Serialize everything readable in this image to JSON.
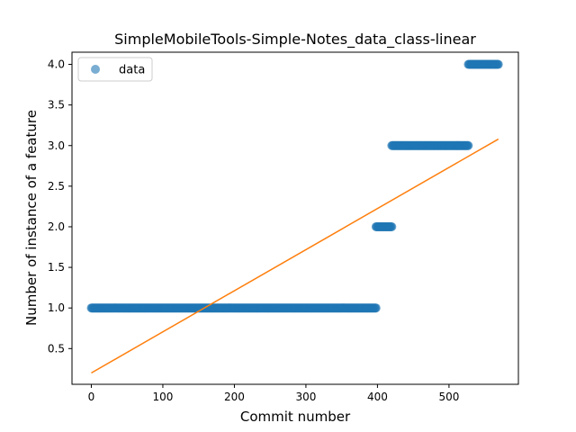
{
  "chart_data": {
    "type": "scatter",
    "title": "SimpleMobileTools-Simple-Notes_data_class-linear",
    "xlabel": "Commit number",
    "ylabel": "Number of instance of a feature",
    "xlim": [
      -27,
      597
    ],
    "ylim": [
      0.06,
      4.15
    ],
    "xticks": [
      0,
      100,
      200,
      300,
      400,
      500
    ],
    "yticks": [
      0.5,
      1.0,
      1.5,
      2.0,
      2.5,
      3.0,
      3.5,
      4.0
    ],
    "xtick_labels": [
      "0",
      "100",
      "200",
      "300",
      "400",
      "500"
    ],
    "ytick_labels": [
      "0.5",
      "1.0",
      "1.5",
      "2.0",
      "2.5",
      "3.0",
      "3.5",
      "4.0"
    ],
    "legend": {
      "label": "data",
      "position": "top-left"
    },
    "colors": {
      "data": "#1f77b4",
      "fit": "#ff7f0e"
    },
    "series": [
      {
        "name": "data",
        "kind": "points",
        "segments": [
          {
            "x_start": 0,
            "x_end": 398,
            "y": 1.0
          },
          {
            "x_start": 398,
            "x_end": 420,
            "y": 2.0
          },
          {
            "x_start": 420,
            "x_end": 527,
            "y": 3.0
          },
          {
            "x_start": 527,
            "x_end": 569,
            "y": 4.0
          }
        ]
      },
      {
        "kind": "line",
        "x": [
          0,
          569
        ],
        "y": [
          0.2,
          3.08
        ]
      }
    ]
  }
}
